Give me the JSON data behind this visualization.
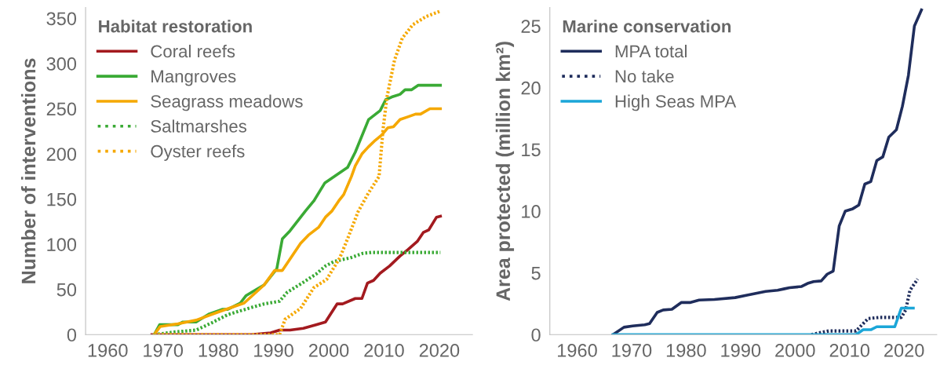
{
  "chart_data": [
    {
      "type": "line",
      "ylabel": "Number of interventions",
      "legend_title": "Habitat restoration",
      "legend": "top left",
      "grid": false,
      "xlim": [
        1956,
        2026
      ],
      "xticks": [
        1960,
        1970,
        1980,
        1990,
        2000,
        2010,
        2020
      ],
      "ylim": [
        0,
        362
      ],
      "yticks": [
        0,
        50,
        100,
        150,
        200,
        250,
        300,
        350
      ],
      "series": [
        {
          "name": "Coral reefs",
          "color": "#a31a1f",
          "line_style": "solid",
          "x": [
            1968,
            1986,
            1989.5,
            1991.1,
            1993,
            1995.4,
            1997.7,
            1999.4,
            2001.5,
            2002.5,
            2004.8,
            2006,
            2007,
            2008.1,
            2009.3,
            2011,
            2012.9,
            2014.3,
            2016,
            2017.1,
            2018.1,
            2019.5,
            2020.2
          ],
          "values": [
            0,
            0,
            2,
            5,
            5,
            7,
            11,
            14,
            34,
            34,
            40,
            40,
            57,
            60,
            68,
            76,
            87,
            94,
            103,
            113,
            116,
            130,
            131
          ]
        },
        {
          "name": "Mangroves",
          "color": "#3aaa35",
          "line_style": "solid",
          "x": [
            1968.4,
            1969.4,
            1972.7,
            1973.6,
            1976,
            1978.4,
            1980.7,
            1981.7,
            1984,
            1985,
            1986.9,
            1988.3,
            1990.6,
            1991.6,
            1993,
            1995.8,
            1997.3,
            1999.3,
            2003.4,
            2004.8,
            2007.2,
            2009.3,
            2010.3,
            2011.4,
            2012.9,
            2013.8,
            2015,
            2016.2,
            2020.2
          ],
          "values": [
            0,
            11,
            11,
            14,
            14,
            23,
            28,
            28,
            35,
            43,
            50,
            55,
            73,
            106,
            115,
            137,
            148,
            168,
            185,
            202,
            238,
            248,
            260,
            263,
            266,
            271,
            271,
            276,
            276
          ]
        },
        {
          "name": "Seagrass meadows",
          "color": "#f5a800",
          "line_style": "solid",
          "x": [
            1968.4,
            1969.5,
            1972.7,
            1976,
            1980,
            1984.7,
            1988.3,
            1990.2,
            1991.6,
            1994.9,
            1996.3,
            1998.2,
            1999.4,
            2000.6,
            2001.8,
            2002.7,
            2004.1,
            2004.8,
            2006,
            2007.2,
            2008.4,
            2009.6,
            2010.7,
            2011.7,
            2012.9,
            2014.3,
            2015.7,
            2016.6,
            2018.3,
            2020.2
          ],
          "values": [
            0,
            9,
            12,
            16,
            25,
            35,
            55,
            71,
            71,
            101,
            110,
            119,
            130,
            137,
            148,
            155,
            175,
            187,
            200,
            208,
            215,
            221,
            229,
            230,
            238,
            241,
            244,
            244,
            250,
            250
          ]
        },
        {
          "name": "Saltmarshes",
          "color": "#3aaa35",
          "line_style": "dotted",
          "x": [
            1968.4,
            1972.2,
            1976,
            1978.8,
            1981.7,
            1985.4,
            1988.3,
            1991.1,
            1992.5,
            1994.9,
            1997.7,
            1999.4,
            2001,
            2003.9,
            2006.2,
            2007.7,
            2020.2
          ],
          "values": [
            0,
            3,
            5,
            13,
            22,
            29,
            34,
            37,
            47,
            56,
            67,
            76,
            81,
            85,
            90,
            91,
            91
          ]
        },
        {
          "name": "Oyster reefs",
          "color": "#f5a800",
          "line_style": "dotted",
          "x": [
            1968.4,
            1991.1,
            1992.1,
            1994.9,
            1997.3,
            1999.6,
            2002,
            2003.4,
            2005.3,
            2007.2,
            2009.1,
            2009.8,
            2010.5,
            2011.9,
            2013.3,
            2015.2,
            2017.6,
            2020.2
          ],
          "values": [
            0,
            0,
            17,
            29,
            52,
            61,
            85,
            106,
            136,
            157,
            175,
            226,
            262,
            304,
            328,
            343,
            352,
            358
          ]
        }
      ]
    },
    {
      "type": "line",
      "ylabel": "Area protected (million km²)",
      "legend_title": "Marine conservation",
      "legend": "top left",
      "grid": false,
      "xlim": [
        1955,
        2026
      ],
      "xticks": [
        1960,
        1970,
        1980,
        1990,
        2000,
        2010,
        2020
      ],
      "ylim": [
        0,
        26.5
      ],
      "yticks": [
        0,
        5,
        10,
        15,
        20,
        25
      ],
      "series": [
        {
          "name": "MPA total",
          "color": "#1f2d5c",
          "line_style": "solid",
          "x": [
            1966.6,
            1968.6,
            1970.2,
            1972.4,
            1973.3,
            1974.7,
            1975.8,
            1977.4,
            1979.1,
            1980.7,
            1982.4,
            1985.2,
            1989,
            1991.2,
            1994.6,
            1996.8,
            1997.9,
            1999,
            2001.2,
            2002.3,
            2003.4,
            2004.8,
            2005.9,
            2007,
            2008.1,
            2009.2,
            2010.6,
            2011.7,
            2012.8,
            2013.9,
            2015,
            2016.1,
            2017.2,
            2018.6,
            2019.7,
            2020.8,
            2021.9,
            2023.2
          ],
          "values": [
            0,
            0.6,
            0.7,
            0.8,
            0.9,
            1.8,
            2.0,
            2.05,
            2.6,
            2.6,
            2.8,
            2.85,
            3.0,
            3.2,
            3.5,
            3.6,
            3.7,
            3.8,
            3.9,
            4.15,
            4.3,
            4.35,
            4.9,
            5.15,
            8.8,
            10.0,
            10.2,
            10.5,
            12.2,
            12.4,
            14.1,
            14.4,
            16.0,
            16.6,
            18.5,
            21.0,
            25.0,
            26.3
          ]
        },
        {
          "name": "No take",
          "color": "#1f2d5c",
          "line_style": "dotted",
          "x": [
            2003,
            2004,
            2006.2,
            2011.2,
            2013.4,
            2015.6,
            2019.5,
            2020.3,
            2021.1,
            2022.5
          ],
          "values": [
            0,
            0.1,
            0.3,
            0.3,
            1.3,
            1.4,
            1.4,
            2.0,
            3.6,
            4.5
          ]
        },
        {
          "name": "High Seas MPA",
          "color": "#1ba6d8",
          "line_style": "solid",
          "x": [
            1966.6,
            2011.2,
            2012.5,
            2013.9,
            2015,
            2018.3,
            2019.5,
            2021.7
          ],
          "values": [
            0,
            0,
            0.4,
            0.4,
            0.64,
            0.64,
            2.15,
            2.15
          ]
        }
      ]
    }
  ]
}
